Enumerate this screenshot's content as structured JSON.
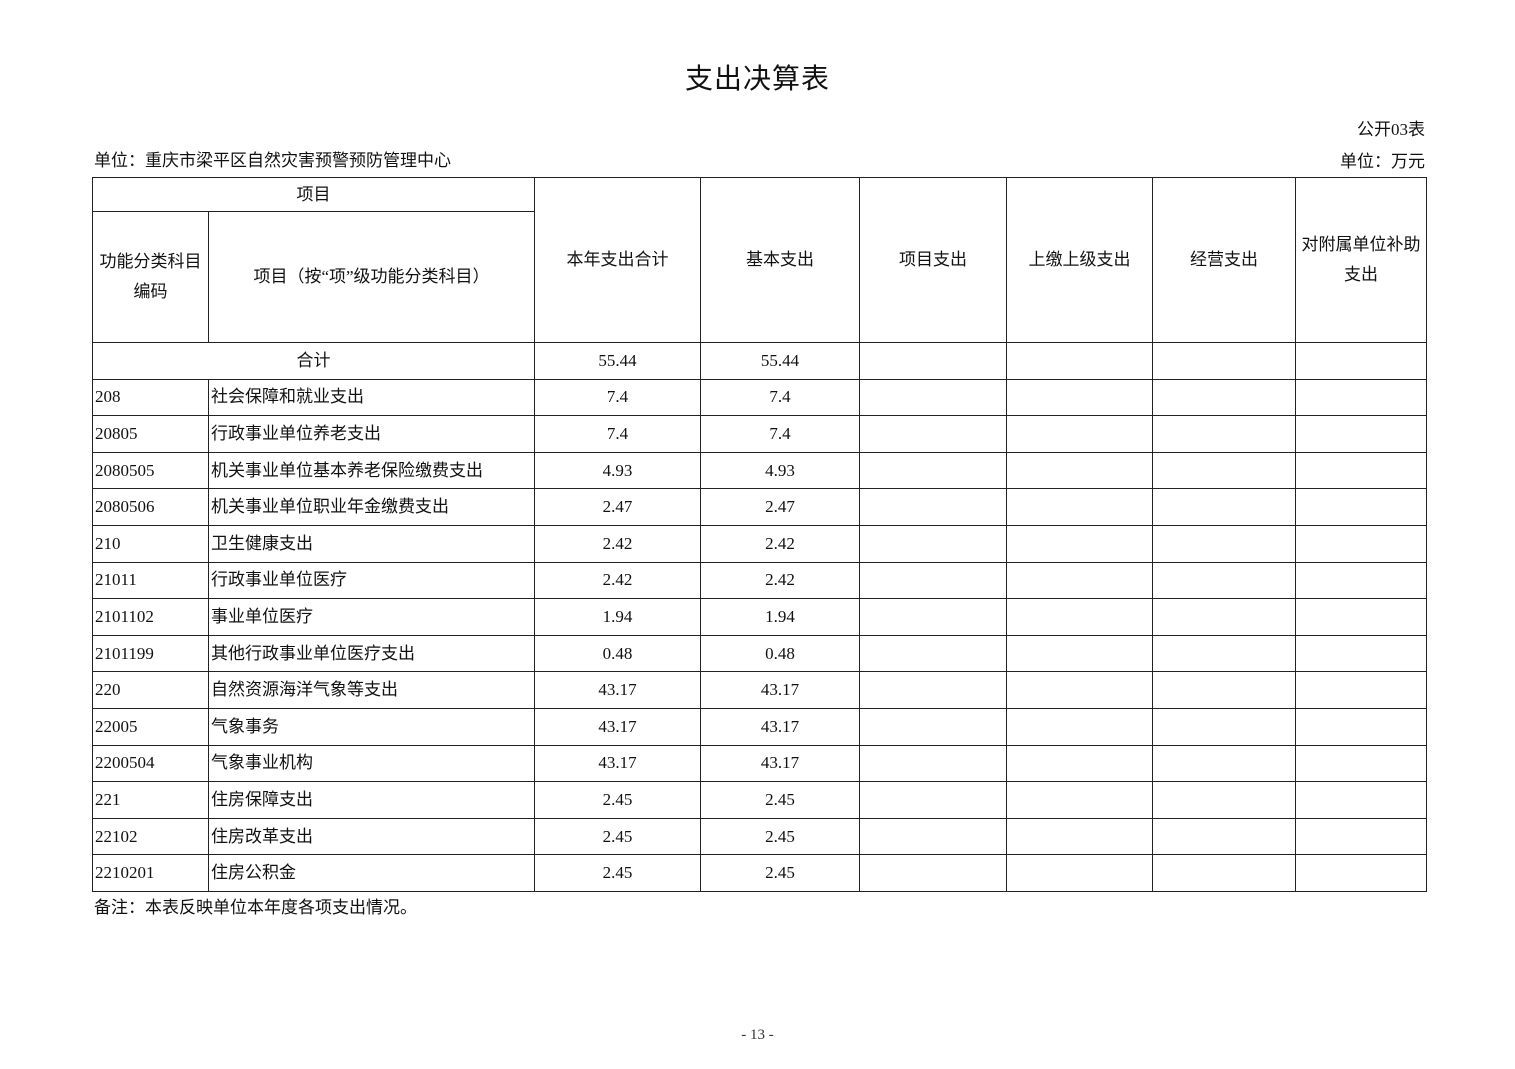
{
  "title": "支出决算表",
  "form_no": "公开03表",
  "unit_org": "单位：重庆市梁平区自然灾害预警预防管理中心",
  "unit_money": "单位：万元",
  "headers": {
    "project": "项目",
    "code": "功能分类科目编码",
    "name": "项目（按“项”级功能分类科目）",
    "total": "本年支出合计",
    "basic": "基本支出",
    "project_exp": "项目支出",
    "upper": "上缴上级支出",
    "business": "经营支出",
    "subsidy": "对附属单位补助支出"
  },
  "total_row": {
    "label": "合计",
    "total": "55.44",
    "basic": "55.44"
  },
  "rows": [
    {
      "code": "208",
      "name": "社会保障和就业支出",
      "total": "7.4",
      "basic": "7.4"
    },
    {
      "code": "20805",
      "name": "行政事业单位养老支出",
      "total": "7.4",
      "basic": "7.4"
    },
    {
      "code": "2080505",
      "name": "机关事业单位基本养老保险缴费支出",
      "total": "4.93",
      "basic": "4.93"
    },
    {
      "code": "2080506",
      "name": "机关事业单位职业年金缴费支出",
      "total": "2.47",
      "basic": "2.47"
    },
    {
      "code": "210",
      "name": "卫生健康支出",
      "total": "2.42",
      "basic": "2.42"
    },
    {
      "code": "21011",
      "name": "行政事业单位医疗",
      "total": "2.42",
      "basic": "2.42"
    },
    {
      "code": "2101102",
      "name": "事业单位医疗",
      "total": "1.94",
      "basic": "1.94"
    },
    {
      "code": "2101199",
      "name": "其他行政事业单位医疗支出",
      "total": "0.48",
      "basic": "0.48"
    },
    {
      "code": "220",
      "name": "自然资源海洋气象等支出",
      "total": "43.17",
      "basic": "43.17"
    },
    {
      "code": "22005",
      "name": "气象事务",
      "total": "43.17",
      "basic": "43.17"
    },
    {
      "code": "2200504",
      "name": "气象事业机构",
      "total": "43.17",
      "basic": "43.17"
    },
    {
      "code": "221",
      "name": "住房保障支出",
      "total": "2.45",
      "basic": "2.45"
    },
    {
      "code": "22102",
      "name": "住房改革支出",
      "total": "2.45",
      "basic": "2.45"
    },
    {
      "code": "2210201",
      "name": "住房公积金",
      "total": "2.45",
      "basic": "2.45"
    }
  ],
  "note": "备注：本表反映单位本年度各项支出情况。",
  "page_number": "- 13 -"
}
